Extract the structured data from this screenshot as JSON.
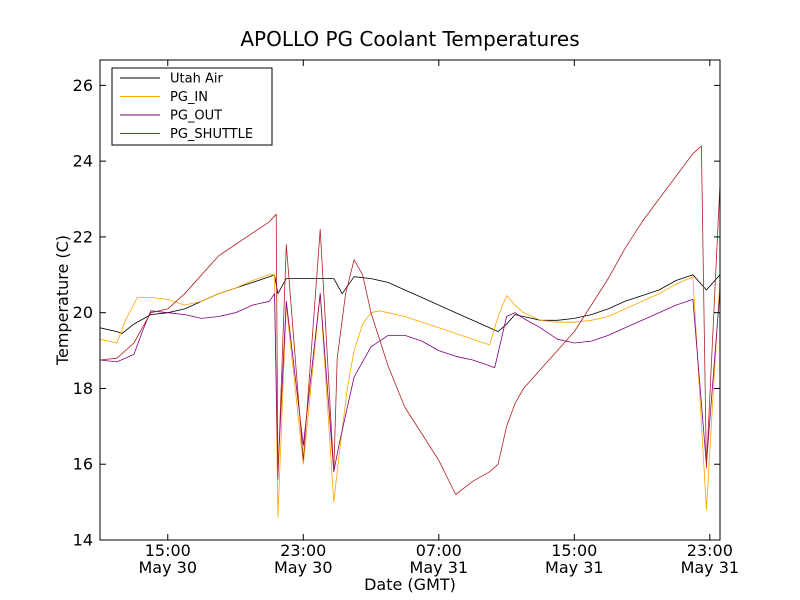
{
  "chart_data": {
    "type": "line",
    "title": "APOLLO PG Coolant Temperatures",
    "xlabel": "Date (GMT)",
    "ylabel": "Temperature (C)",
    "xlim": [
      11.0,
      47.6
    ],
    "ylim": [
      14,
      26.67
    ],
    "x_unit": "hours since May 30 00:00 GMT",
    "yticks": [
      14,
      16,
      18,
      20,
      22,
      24,
      26
    ],
    "ytick_labels": [
      "14",
      "16",
      "18",
      "20",
      "22",
      "24",
      "26"
    ],
    "xticks": [
      {
        "x": 15,
        "time": "15:00",
        "date": "May 30"
      },
      {
        "x": 23,
        "time": "23:00",
        "date": "May 30"
      },
      {
        "x": 31,
        "time": "07:00",
        "date": "May 31"
      },
      {
        "x": 39,
        "time": "15:00",
        "date": "May 31"
      },
      {
        "x": 47,
        "time": "23:00",
        "date": "May 31"
      }
    ],
    "legend_position": "top-left",
    "series": [
      {
        "name": "Utah Air",
        "color": "#000000",
        "x": [
          11.0,
          12.0,
          12.3,
          13.0,
          14.0,
          15.0,
          16.0,
          17.0,
          18.0,
          19.0,
          20.0,
          21.0,
          21.3,
          21.5,
          22.0,
          23.0,
          24.0,
          24.8,
          25.3,
          26.0,
          27.0,
          28.0,
          29.0,
          30.0,
          31.0,
          32.0,
          33.0,
          34.0,
          34.5,
          35.0,
          35.5,
          36.0,
          36.5,
          37.0,
          38.0,
          39.0,
          40.0,
          41.0,
          42.0,
          43.0,
          44.0,
          45.0,
          46.0,
          46.8,
          47.6
        ],
        "values": [
          19.6,
          19.5,
          19.45,
          19.7,
          19.95,
          20.0,
          20.1,
          20.3,
          20.5,
          20.65,
          20.8,
          20.95,
          21.0,
          20.5,
          20.9,
          20.9,
          20.9,
          20.9,
          20.5,
          20.95,
          20.9,
          20.8,
          20.6,
          20.4,
          20.2,
          20.0,
          19.8,
          19.6,
          19.5,
          19.7,
          19.95,
          19.9,
          19.85,
          19.8,
          19.8,
          19.85,
          19.95,
          20.1,
          20.3,
          20.45,
          20.6,
          20.85,
          21.0,
          20.6,
          21.0
        ]
      },
      {
        "name": "PG_IN",
        "color": "#ffa500",
        "x": [
          11.0,
          12.0,
          12.5,
          13.2,
          14.0,
          15.0,
          16.0,
          17.0,
          18.0,
          19.0,
          20.0,
          21.0,
          21.3,
          21.5,
          22.0,
          23.0,
          24.0,
          24.8,
          25.1,
          25.6,
          26.0,
          26.5,
          27.0,
          27.5,
          28.0,
          29.0,
          30.0,
          31.0,
          32.0,
          33.0,
          34.0,
          34.5,
          35.0,
          35.5,
          36.0,
          37.0,
          38.0,
          39.0,
          40.0,
          41.0,
          42.0,
          43.0,
          44.0,
          45.0,
          46.0,
          46.8,
          47.6
        ],
        "values": [
          19.3,
          19.2,
          19.8,
          20.4,
          20.4,
          20.35,
          20.2,
          20.3,
          20.5,
          20.65,
          20.85,
          21.0,
          21.0,
          14.6,
          20.2,
          16.0,
          20.5,
          15.0,
          16.2,
          18.0,
          19.0,
          19.7,
          20.0,
          20.05,
          20.0,
          19.9,
          19.75,
          19.6,
          19.45,
          19.3,
          19.15,
          19.9,
          20.45,
          20.2,
          20.0,
          19.8,
          19.75,
          19.75,
          19.8,
          19.9,
          20.1,
          20.3,
          20.5,
          20.75,
          20.95,
          14.8,
          20.9
        ]
      },
      {
        "name": "PG_OUT",
        "color": "#800080",
        "x": [
          11.0,
          12.0,
          13.0,
          13.5,
          14.0,
          15.0,
          16.0,
          17.0,
          18.0,
          19.0,
          20.0,
          21.0,
          21.3,
          21.5,
          22.0,
          23.0,
          24.0,
          24.8,
          25.1,
          25.6,
          26.0,
          27.0,
          28.0,
          29.0,
          30.0,
          31.0,
          32.0,
          33.0,
          34.0,
          34.3,
          35.0,
          35.5,
          36.0,
          37.0,
          38.0,
          39.0,
          40.0,
          41.0,
          42.0,
          43.0,
          44.0,
          45.0,
          46.0,
          46.8,
          47.6
        ],
        "values": [
          18.75,
          18.7,
          18.9,
          19.5,
          20.05,
          20.0,
          19.95,
          19.85,
          19.9,
          20.0,
          20.2,
          20.3,
          20.5,
          15.8,
          20.3,
          16.5,
          20.5,
          15.8,
          16.5,
          17.5,
          18.3,
          19.1,
          19.4,
          19.4,
          19.25,
          19.0,
          18.85,
          18.75,
          18.6,
          18.55,
          19.9,
          20.0,
          19.85,
          19.6,
          19.3,
          19.2,
          19.25,
          19.4,
          19.6,
          19.8,
          20.0,
          20.2,
          20.35,
          16.0,
          20.6
        ]
      },
      {
        "name": "PG_SHUTTLE",
        "color": "#b22222",
        "x": [
          11.0,
          12.0,
          13.0,
          13.5,
          14.0,
          15.0,
          16.0,
          17.0,
          18.0,
          19.0,
          20.0,
          21.0,
          21.4,
          21.5,
          22.0,
          23.0,
          24.0,
          24.8,
          25.0,
          25.5,
          26.0,
          26.5,
          27.0,
          28.0,
          29.0,
          30.0,
          31.0,
          32.0,
          33.0,
          34.0,
          34.5,
          35.0,
          35.5,
          36.0,
          37.0,
          38.0,
          39.0,
          40.0,
          41.0,
          42.0,
          43.0,
          44.0,
          45.0,
          46.0,
          46.5,
          46.8,
          47.6
        ],
        "values": [
          18.75,
          18.8,
          19.2,
          19.6,
          20.0,
          20.1,
          20.5,
          21.0,
          21.5,
          21.8,
          22.1,
          22.4,
          22.6,
          15.6,
          21.8,
          16.1,
          22.2,
          15.8,
          18.8,
          20.5,
          21.4,
          21.0,
          20.0,
          18.6,
          17.5,
          16.8,
          16.1,
          15.2,
          15.55,
          15.8,
          16.0,
          17.0,
          17.6,
          18.0,
          18.5,
          19.0,
          19.5,
          20.2,
          20.9,
          21.7,
          22.4,
          23.0,
          23.6,
          24.2,
          24.4,
          15.9,
          23.4
        ]
      }
    ]
  }
}
